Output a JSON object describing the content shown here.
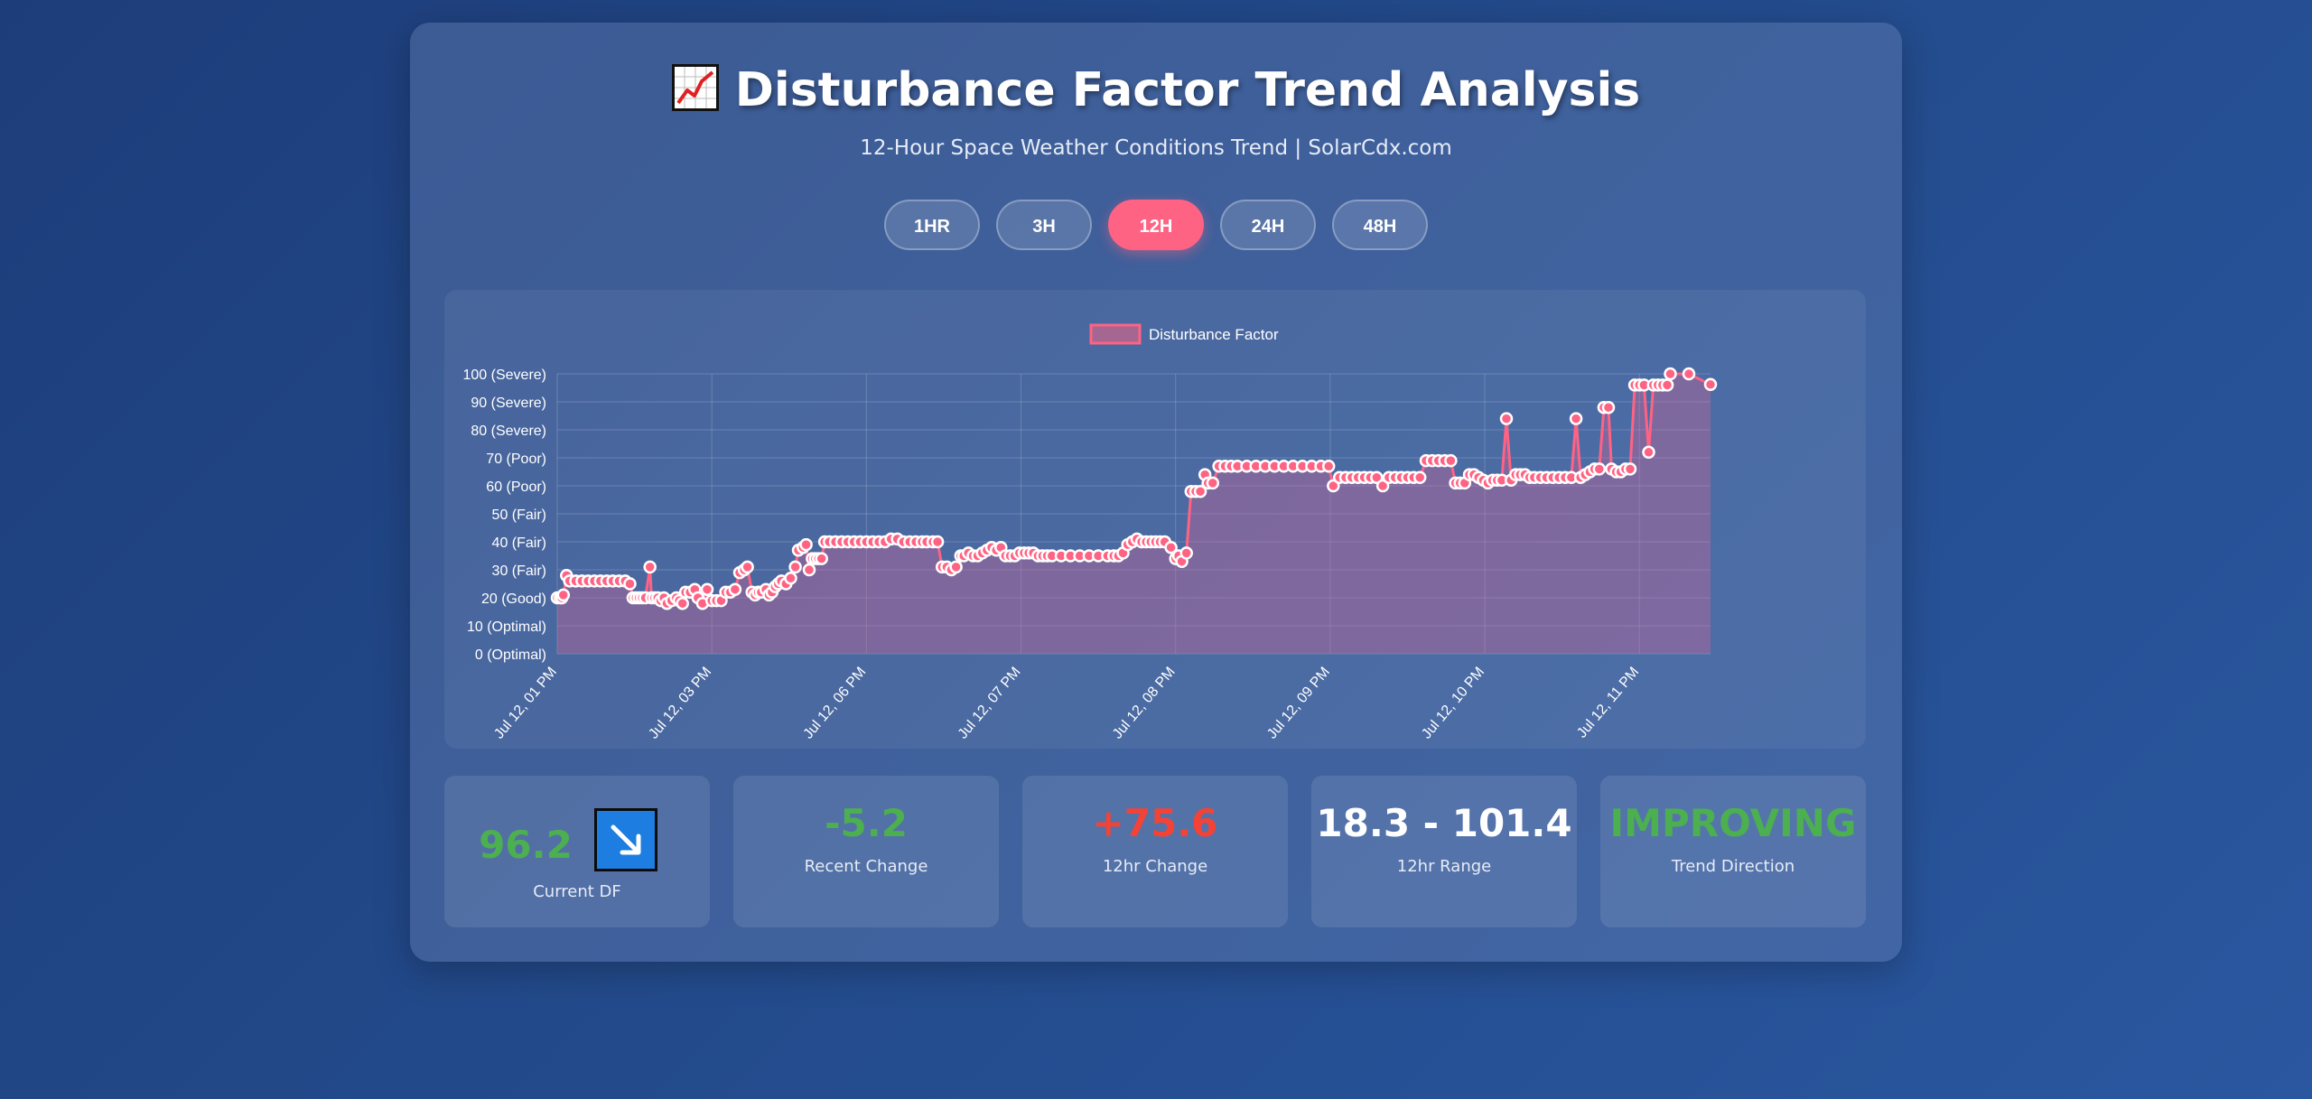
{
  "header": {
    "title": "Disturbance Factor Trend Analysis",
    "title_icon": "chart-increasing-icon",
    "subtitle": "12-Hour Space Weather Conditions Trend | SolarCdx.com"
  },
  "range_buttons": [
    {
      "label": "1HR",
      "active": false
    },
    {
      "label": "3H",
      "active": false
    },
    {
      "label": "12H",
      "active": true
    },
    {
      "label": "24H",
      "active": false
    },
    {
      "label": "48H",
      "active": false
    }
  ],
  "colors": {
    "accent": "#ff6384",
    "good": "#4caf50",
    "bad": "#f44336",
    "arrow_box": "#1e7de0"
  },
  "stats": [
    {
      "value": "96.2",
      "label": "Current DF",
      "color": "#4caf50",
      "icon": "arrow-down-right-icon"
    },
    {
      "value": "-5.2",
      "label": "Recent Change",
      "color": "#4caf50"
    },
    {
      "value": "+75.6",
      "label": "12hr Change",
      "color": "#f44336"
    },
    {
      "value": "18.3 - 101.4",
      "label": "12hr Range",
      "color": "#ffffff"
    },
    {
      "value": "IMPROVING",
      "label": "Trend Direction",
      "color": "#4caf50"
    }
  ],
  "chart_data": {
    "type": "line",
    "legend": "Disturbance Factor",
    "legend_position": "top-center",
    "grid": true,
    "ylim": [
      0,
      100
    ],
    "y_ticks": [
      "0 (Optimal)",
      "10 (Optimal)",
      "20 (Good)",
      "30 (Fair)",
      "40 (Fair)",
      "50 (Fair)",
      "60 (Poor)",
      "70 (Poor)",
      "80 (Severe)",
      "90 (Severe)",
      "100 (Severe)"
    ],
    "x_ticks": [
      "Jul 12, 01 PM",
      "Jul 12, 03 PM",
      "Jul 12, 06 PM",
      "Jul 12, 07 PM",
      "Jul 12, 08 PM",
      "Jul 12, 09 PM",
      "Jul 12, 10 PM",
      "Jul 12, 11 PM"
    ],
    "series": [
      {
        "name": "Disturbance Factor",
        "points": [
          [
            0,
            20
          ],
          [
            0.1,
            20
          ],
          [
            0.15,
            20
          ],
          [
            0.2,
            21
          ],
          [
            0.3,
            28
          ],
          [
            0.4,
            26
          ],
          [
            0.6,
            26
          ],
          [
            0.8,
            26
          ],
          [
            1,
            26
          ],
          [
            1.2,
            26
          ],
          [
            1.4,
            26
          ],
          [
            1.6,
            26
          ],
          [
            1.8,
            26
          ],
          [
            2,
            26
          ],
          [
            2.2,
            26
          ],
          [
            2.35,
            25
          ],
          [
            2.45,
            20
          ],
          [
            2.55,
            20
          ],
          [
            2.65,
            20
          ],
          [
            2.75,
            20
          ],
          [
            2.85,
            20
          ],
          [
            3.0,
            31
          ],
          [
            3.05,
            20
          ],
          [
            3.15,
            20
          ],
          [
            3.25,
            20
          ],
          [
            3.35,
            19
          ],
          [
            3.45,
            20
          ],
          [
            3.55,
            18
          ],
          [
            3.7,
            19
          ],
          [
            3.85,
            20
          ],
          [
            3.95,
            19
          ],
          [
            4.05,
            18
          ],
          [
            4.15,
            22
          ],
          [
            4.3,
            22
          ],
          [
            4.45,
            23
          ],
          [
            4.55,
            20
          ],
          [
            4.7,
            18
          ],
          [
            4.85,
            23
          ],
          [
            5.0,
            19
          ],
          [
            5.15,
            19
          ],
          [
            5.3,
            19
          ],
          [
            5.45,
            22
          ],
          [
            5.6,
            22
          ],
          [
            5.75,
            23
          ],
          [
            5.9,
            29
          ],
          [
            6.05,
            30
          ],
          [
            6.15,
            31
          ],
          [
            6.3,
            22
          ],
          [
            6.4,
            21
          ],
          [
            6.5,
            22
          ],
          [
            6.6,
            22
          ],
          [
            6.75,
            23
          ],
          [
            6.85,
            21
          ],
          [
            6.95,
            22
          ],
          [
            7.05,
            24
          ],
          [
            7.15,
            25
          ],
          [
            7.25,
            26
          ],
          [
            7.4,
            25
          ],
          [
            7.55,
            27
          ],
          [
            7.7,
            31
          ],
          [
            7.8,
            37
          ],
          [
            7.95,
            38
          ],
          [
            8.05,
            39
          ],
          [
            8.15,
            30
          ],
          [
            8.25,
            34
          ],
          [
            8.35,
            34
          ],
          [
            8.45,
            34
          ],
          [
            8.55,
            34
          ],
          [
            8.65,
            40
          ],
          [
            8.8,
            40
          ],
          [
            9,
            40
          ],
          [
            9.2,
            40
          ],
          [
            9.4,
            40
          ],
          [
            9.6,
            40
          ],
          [
            9.8,
            40
          ],
          [
            10,
            40
          ],
          [
            10.2,
            40
          ],
          [
            10.4,
            40
          ],
          [
            10.6,
            40
          ],
          [
            10.8,
            41
          ],
          [
            11.0,
            41
          ],
          [
            11.2,
            40
          ],
          [
            11.4,
            40
          ],
          [
            11.6,
            40
          ],
          [
            11.8,
            40
          ],
          [
            11.95,
            40
          ],
          [
            12.15,
            40
          ],
          [
            12.3,
            40
          ],
          [
            12.45,
            31
          ],
          [
            12.6,
            31
          ],
          [
            12.75,
            30
          ],
          [
            12.9,
            31
          ],
          [
            13.05,
            35
          ],
          [
            13.15,
            35
          ],
          [
            13.3,
            36
          ],
          [
            13.45,
            35
          ],
          [
            13.6,
            35
          ],
          [
            13.75,
            36
          ],
          [
            13.9,
            37
          ],
          [
            14.05,
            38
          ],
          [
            14.2,
            37
          ],
          [
            14.35,
            38
          ],
          [
            14.5,
            35
          ],
          [
            14.65,
            35
          ],
          [
            14.8,
            35
          ],
          [
            14.95,
            36
          ],
          [
            15.1,
            36
          ],
          [
            15.25,
            36
          ],
          [
            15.4,
            36
          ],
          [
            15.55,
            35
          ],
          [
            15.7,
            35
          ],
          [
            15.85,
            35
          ],
          [
            16,
            35
          ],
          [
            16.3,
            35
          ],
          [
            16.6,
            35
          ],
          [
            16.9,
            35
          ],
          [
            17.2,
            35
          ],
          [
            17.5,
            35
          ],
          [
            17.8,
            35
          ],
          [
            18.0,
            35
          ],
          [
            18.15,
            35
          ],
          [
            18.3,
            36
          ],
          [
            18.45,
            39
          ],
          [
            18.6,
            40
          ],
          [
            18.75,
            41
          ],
          [
            18.9,
            40
          ],
          [
            19.05,
            40
          ],
          [
            19.2,
            40
          ],
          [
            19.35,
            40
          ],
          [
            19.5,
            40
          ],
          [
            19.65,
            40
          ],
          [
            19.85,
            38
          ],
          [
            20.0,
            34
          ],
          [
            20.1,
            35
          ],
          [
            20.2,
            33
          ],
          [
            20.35,
            36
          ],
          [
            20.5,
            58
          ],
          [
            20.65,
            58
          ],
          [
            20.8,
            58
          ],
          [
            20.95,
            64
          ],
          [
            21.05,
            61
          ],
          [
            21.2,
            61
          ],
          [
            21.4,
            67
          ],
          [
            21.6,
            67
          ],
          [
            21.8,
            67
          ],
          [
            22,
            67
          ],
          [
            22.3,
            67
          ],
          [
            22.6,
            67
          ],
          [
            22.9,
            67
          ],
          [
            23.2,
            67
          ],
          [
            23.5,
            67
          ],
          [
            23.8,
            67
          ],
          [
            24.1,
            67
          ],
          [
            24.4,
            67
          ],
          [
            24.7,
            67
          ],
          [
            24.95,
            67
          ],
          [
            25.1,
            60
          ],
          [
            25.3,
            63
          ],
          [
            25.5,
            63
          ],
          [
            25.7,
            63
          ],
          [
            25.9,
            63
          ],
          [
            26.1,
            63
          ],
          [
            26.3,
            63
          ],
          [
            26.5,
            63
          ],
          [
            26.7,
            60
          ],
          [
            26.9,
            63
          ],
          [
            27.1,
            63
          ],
          [
            27.3,
            63
          ],
          [
            27.5,
            63
          ],
          [
            27.7,
            63
          ],
          [
            27.9,
            63
          ],
          [
            28.1,
            69
          ],
          [
            28.3,
            69
          ],
          [
            28.5,
            69
          ],
          [
            28.7,
            69
          ],
          [
            28.9,
            69
          ],
          [
            29.05,
            61
          ],
          [
            29.2,
            61
          ],
          [
            29.35,
            61
          ],
          [
            29.5,
            64
          ],
          [
            29.65,
            64
          ],
          [
            29.8,
            63
          ],
          [
            29.95,
            62
          ],
          [
            30.1,
            61
          ],
          [
            30.25,
            62
          ],
          [
            30.4,
            62
          ],
          [
            30.55,
            62
          ],
          [
            30.7,
            84
          ],
          [
            30.85,
            62
          ],
          [
            31.0,
            64
          ],
          [
            31.15,
            64
          ],
          [
            31.3,
            64
          ],
          [
            31.45,
            63
          ],
          [
            31.6,
            63
          ],
          [
            31.8,
            63
          ],
          [
            32,
            63
          ],
          [
            32.2,
            63
          ],
          [
            32.4,
            63
          ],
          [
            32.6,
            63
          ],
          [
            32.8,
            63
          ],
          [
            32.95,
            84
          ],
          [
            33.1,
            63
          ],
          [
            33.25,
            64
          ],
          [
            33.4,
            65
          ],
          [
            33.55,
            66
          ],
          [
            33.7,
            66
          ],
          [
            33.85,
            88
          ],
          [
            34.0,
            88
          ],
          [
            34.1,
            66
          ],
          [
            34.25,
            65
          ],
          [
            34.4,
            65
          ],
          [
            34.55,
            66
          ],
          [
            34.7,
            66
          ],
          [
            34.85,
            96
          ],
          [
            35.0,
            96
          ],
          [
            35.15,
            96
          ],
          [
            35.3,
            72
          ],
          [
            35.45,
            96
          ],
          [
            35.6,
            96
          ],
          [
            35.75,
            96
          ],
          [
            35.9,
            96
          ],
          [
            36.0,
            101.4
          ],
          [
            36.6,
            101.4
          ],
          [
            37.3,
            96.2
          ]
        ]
      }
    ]
  }
}
